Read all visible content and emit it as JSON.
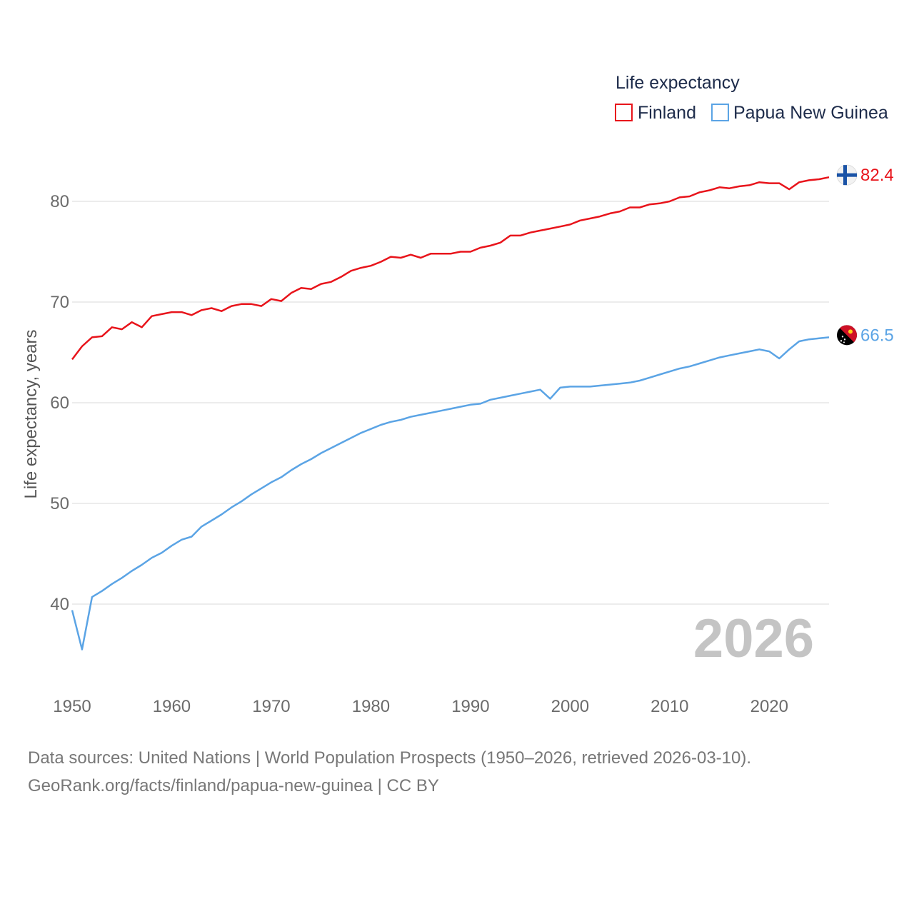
{
  "chart_data": {
    "type": "line",
    "legend_title": "Life expectancy",
    "ylabel": "Life expectancy, years",
    "xlim": [
      1950,
      2026
    ],
    "ylim": [
      33,
      86
    ],
    "yticks": [
      40,
      50,
      60,
      70,
      80
    ],
    "xticks": [
      1950,
      1960,
      1970,
      1980,
      1990,
      2000,
      2010,
      2020
    ],
    "year_overlay": "2026",
    "legend_placement": "top-right",
    "x": [
      1950,
      1951,
      1952,
      1953,
      1954,
      1955,
      1956,
      1957,
      1958,
      1959,
      1960,
      1961,
      1962,
      1963,
      1964,
      1965,
      1966,
      1967,
      1968,
      1969,
      1970,
      1971,
      1972,
      1973,
      1974,
      1975,
      1976,
      1977,
      1978,
      1979,
      1980,
      1981,
      1982,
      1983,
      1984,
      1985,
      1986,
      1987,
      1988,
      1989,
      1990,
      1991,
      1992,
      1993,
      1994,
      1995,
      1996,
      1997,
      1998,
      1999,
      2000,
      2001,
      2002,
      2003,
      2004,
      2005,
      2006,
      2007,
      2008,
      2009,
      2010,
      2011,
      2012,
      2013,
      2014,
      2015,
      2016,
      2017,
      2018,
      2019,
      2020,
      2021,
      2022,
      2023,
      2024,
      2025,
      2026
    ],
    "series": [
      {
        "name": "Finland",
        "color": "#e8141b",
        "end_label": "82.4",
        "flag": "finland-flag",
        "values": [
          64.3,
          65.6,
          66.5,
          66.6,
          67.5,
          67.3,
          68.0,
          67.5,
          68.6,
          68.8,
          69.0,
          69.0,
          68.7,
          69.2,
          69.4,
          69.1,
          69.6,
          69.8,
          69.8,
          69.6,
          70.3,
          70.1,
          70.9,
          71.4,
          71.3,
          71.8,
          72.0,
          72.5,
          73.1,
          73.4,
          73.6,
          74.0,
          74.5,
          74.4,
          74.7,
          74.4,
          74.8,
          74.8,
          74.8,
          75.0,
          75.0,
          75.4,
          75.6,
          75.9,
          76.6,
          76.6,
          76.9,
          77.1,
          77.3,
          77.5,
          77.7,
          78.1,
          78.3,
          78.5,
          78.8,
          79.0,
          79.4,
          79.4,
          79.7,
          79.8,
          80.0,
          80.4,
          80.5,
          80.9,
          81.1,
          81.4,
          81.3,
          81.5,
          81.6,
          81.9,
          81.8,
          81.8,
          81.2,
          81.9,
          82.1,
          82.2,
          82.4
        ]
      },
      {
        "name": "Papua New Guinea",
        "color": "#5ba4e5",
        "end_label": "66.5",
        "flag": "papua-new-guinea-flag",
        "values": [
          39.4,
          35.5,
          40.7,
          41.3,
          42.0,
          42.6,
          43.3,
          43.9,
          44.6,
          45.1,
          45.8,
          46.4,
          46.7,
          47.7,
          48.3,
          48.9,
          49.6,
          50.2,
          50.9,
          51.5,
          52.1,
          52.6,
          53.3,
          53.9,
          54.4,
          55.0,
          55.5,
          56.0,
          56.5,
          57.0,
          57.4,
          57.8,
          58.1,
          58.3,
          58.6,
          58.8,
          59.0,
          59.2,
          59.4,
          59.6,
          59.8,
          59.9,
          60.3,
          60.5,
          60.7,
          60.9,
          61.1,
          61.3,
          60.4,
          61.5,
          61.6,
          61.6,
          61.6,
          61.7,
          61.8,
          61.9,
          62.0,
          62.2,
          62.5,
          62.8,
          63.1,
          63.4,
          63.6,
          63.9,
          64.2,
          64.5,
          64.7,
          64.9,
          65.1,
          65.3,
          65.1,
          64.4,
          65.3,
          66.1,
          66.3,
          66.4,
          66.5
        ]
      }
    ]
  },
  "footer": {
    "source_line": "Data sources: United Nations | World Population Prospects (1950–2026, retrieved 2026-03-10).",
    "credit_line": "GeoRank.org/facts/finland/papua-new-guinea | CC BY"
  }
}
